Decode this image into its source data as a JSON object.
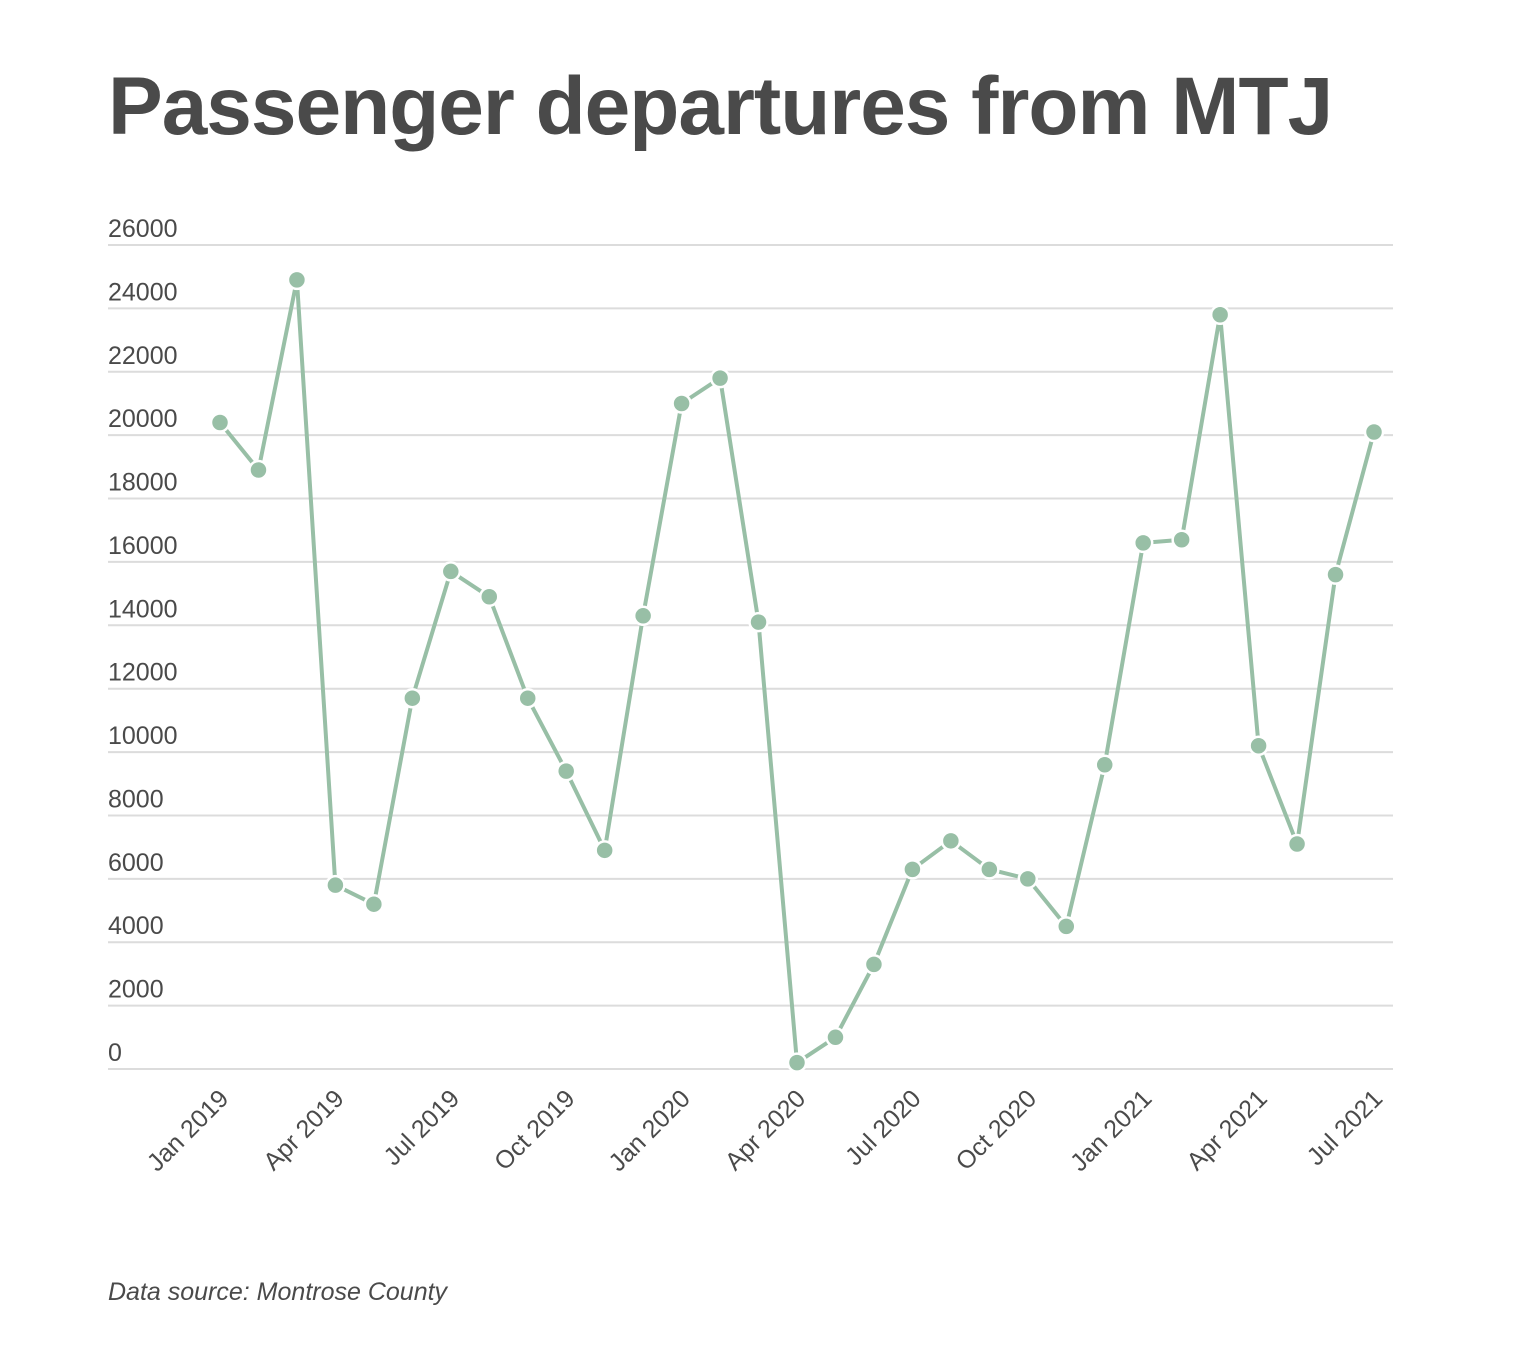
{
  "chart_data": {
    "type": "line",
    "title": "Passenger departures from MTJ",
    "xlabel": "",
    "ylabel": "",
    "ylim": [
      0,
      26000
    ],
    "yticks": [
      "0",
      "2000",
      "4000",
      "6000",
      "8000",
      "10000",
      "12000",
      "14000",
      "16000",
      "18000",
      "20000",
      "22000",
      "24000",
      "26000"
    ],
    "x": [
      "Jan 2019",
      "Feb 2019",
      "Mar 2019",
      "Apr 2019",
      "May 2019",
      "Jun 2019",
      "Jul 2019",
      "Aug 2019",
      "Sep 2019",
      "Oct 2019",
      "Nov 2019",
      "Dec 2019",
      "Jan 2020",
      "Feb 2020",
      "Mar 2020",
      "Apr 2020",
      "May 2020",
      "Jun 2020",
      "Jul 2020",
      "Aug 2020",
      "Sep 2020",
      "Oct 2020",
      "Nov 2020",
      "Dec 2020",
      "Jan 2021",
      "Feb 2021",
      "Mar 2021",
      "Apr 2021",
      "May 2021",
      "Jun 2021",
      "Jul 2021"
    ],
    "xtick_labels": [
      {
        "index": 0,
        "label": "Jan 2019"
      },
      {
        "index": 3,
        "label": "Apr 2019"
      },
      {
        "index": 6,
        "label": "Jul 2019"
      },
      {
        "index": 9,
        "label": "Oct 2019"
      },
      {
        "index": 12,
        "label": "Jan 2020"
      },
      {
        "index": 15,
        "label": "Apr 2020"
      },
      {
        "index": 18,
        "label": "Jul 2020"
      },
      {
        "index": 21,
        "label": "Oct 2020"
      },
      {
        "index": 24,
        "label": "Jan 2021"
      },
      {
        "index": 27,
        "label": "Apr 2021"
      },
      {
        "index": 30,
        "label": "Jul 2021"
      }
    ],
    "series": [
      {
        "values": [
          20400,
          18900,
          24900,
          5800,
          5200,
          11700,
          15700,
          14900,
          11700,
          9400,
          6900,
          14300,
          21000,
          21800,
          14100,
          200,
          1000,
          3300,
          6300,
          7200,
          6300,
          6000,
          4500,
          9600,
          16600,
          16700,
          23800,
          10200,
          7100,
          15600,
          20100
        ]
      }
    ],
    "grid": true,
    "legend": "none",
    "colors": {
      "line": "#98bfa6",
      "grid": "#dcdcdc",
      "text": "#4a4a4a"
    }
  },
  "footer": {
    "source": "Data source: Montrose County"
  }
}
